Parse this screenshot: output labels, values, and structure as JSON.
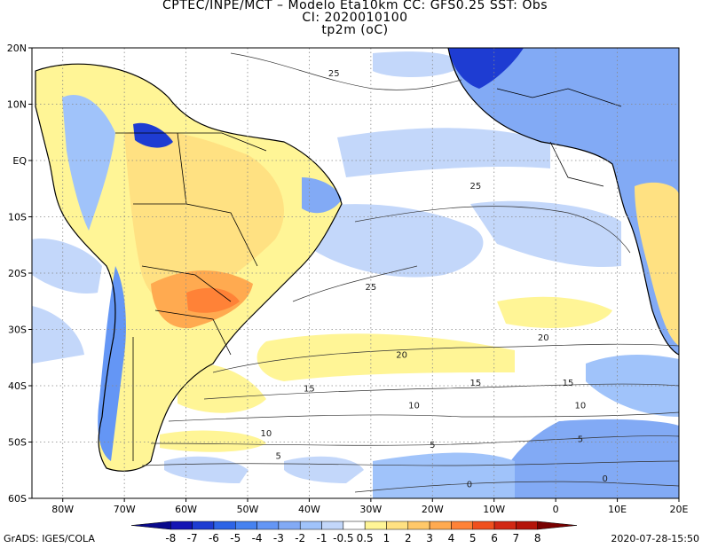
{
  "header": {
    "line1": "CPTEC/INPE/MCT –   Modelo Eta10km  CC: GFS0.25  SST: Obs",
    "line2": "CI: 2020010100",
    "line3": "tp2m (oC)"
  },
  "map": {
    "variable": "tp2m",
    "units": "oC",
    "lon_range": [
      -85,
      20
    ],
    "lat_range": [
      -60,
      20
    ],
    "lon_ticks": [
      {
        "value": -80,
        "label": "80W"
      },
      {
        "value": -70,
        "label": "70W"
      },
      {
        "value": -60,
        "label": "60W"
      },
      {
        "value": -50,
        "label": "50W"
      },
      {
        "value": -40,
        "label": "40W"
      },
      {
        "value": -30,
        "label": "30W"
      },
      {
        "value": -20,
        "label": "20W"
      },
      {
        "value": -10,
        "label": "10W"
      },
      {
        "value": 0,
        "label": "0"
      },
      {
        "value": 10,
        "label": "10E"
      },
      {
        "value": 20,
        "label": "20E"
      }
    ],
    "lat_ticks": [
      {
        "value": 20,
        "label": "20N"
      },
      {
        "value": 10,
        "label": "10N"
      },
      {
        "value": 0,
        "label": "EQ"
      },
      {
        "value": -10,
        "label": "10S"
      },
      {
        "value": -20,
        "label": "20S"
      },
      {
        "value": -30,
        "label": "30S"
      },
      {
        "value": -40,
        "label": "40S"
      },
      {
        "value": -50,
        "label": "50S"
      },
      {
        "value": -60,
        "label": "60S"
      }
    ],
    "grid": "dotted",
    "contour_labels": [
      {
        "text": "25",
        "lon": -36,
        "lat": 15
      },
      {
        "text": "25",
        "lon": -13,
        "lat": -5
      },
      {
        "text": "25",
        "lon": -30,
        "lat": -23
      },
      {
        "text": "20",
        "lon": -25,
        "lat": -35
      },
      {
        "text": "20",
        "lon": -2,
        "lat": -32
      },
      {
        "text": "15",
        "lon": -13,
        "lat": -40
      },
      {
        "text": "15",
        "lon": -40,
        "lat": -41
      },
      {
        "text": "15",
        "lon": 2,
        "lat": -40
      },
      {
        "text": "10",
        "lon": -23,
        "lat": -44
      },
      {
        "text": "10",
        "lon": 4,
        "lat": -44
      },
      {
        "text": "10",
        "lon": -47,
        "lat": -49
      },
      {
        "text": "5",
        "lon": -45,
        "lat": -53
      },
      {
        "text": "5",
        "lon": 4,
        "lat": -50
      },
      {
        "text": "5",
        "lon": -20,
        "lat": -51
      },
      {
        "text": "0",
        "lon": -14,
        "lat": -58
      },
      {
        "text": "0",
        "lon": 8,
        "lat": -57
      }
    ]
  },
  "colorbar": {
    "labels": [
      "-8",
      "-7",
      "-6",
      "-5",
      "-4",
      "-3",
      "-2",
      "-1",
      "-0.5",
      "0.5",
      "1",
      "2",
      "3",
      "4",
      "5",
      "6",
      "7",
      "8"
    ],
    "colors": [
      "#0a0a8c",
      "#1414b4",
      "#1e3cd2",
      "#2d64e6",
      "#4682f0",
      "#6496f5",
      "#82aaf5",
      "#a0c3fa",
      "#c3d7fa",
      "#ffffff",
      "#fff596",
      "#ffe182",
      "#ffc869",
      "#ffaa50",
      "#ff8237",
      "#f0501e",
      "#d22814",
      "#b4140a",
      "#780000"
    ]
  },
  "footer": {
    "left": "GrADS: IGES/COLA",
    "right": "2020-07-28-15:50"
  }
}
